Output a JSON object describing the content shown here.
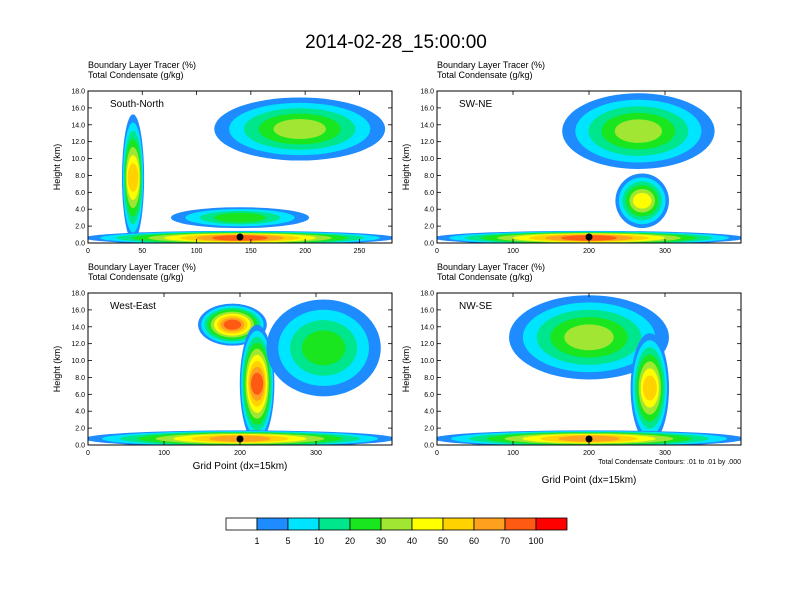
{
  "title": "2014-02-28_15:00:00",
  "header_line1": "Boundary Layer Tracer    (%)",
  "header_line2": "Total Condensate   (g/kg)",
  "y_axis_label": "Height (km)",
  "x_axis_label": "Grid Point (dx=15km)",
  "contour_note": "Total Condensate Contours: .01 to .01 by .000",
  "colorbar": {
    "colors": [
      "#ffffff",
      "#1e8cff",
      "#00e5ff",
      "#00e68c",
      "#19e61e",
      "#a0e632",
      "#ffff00",
      "#ffd200",
      "#ffa01e",
      "#ff5a14",
      "#ff0000"
    ],
    "labels": [
      "1",
      "5",
      "10",
      "20",
      "30",
      "40",
      "50",
      "60",
      "70",
      "100"
    ]
  },
  "chart_data": [
    {
      "type": "heatmap",
      "panel_label": "South-North",
      "x_ticks": [
        0,
        50,
        100,
        150,
        200,
        250
      ],
      "xlim": [
        0,
        280
      ],
      "y_ticks": [
        "0.0",
        "2.0",
        "4.0",
        "6.0",
        "8.0",
        "10.0",
        "12.0",
        "14.0",
        "16.0",
        "18.0"
      ],
      "ylim": [
        0,
        18
      ],
      "marker_x": 140,
      "blobs": [
        {
          "x": [
            35,
            48
          ],
          "y": [
            0.5,
            15.0
          ],
          "level": 7
        },
        {
          "x": [
            140,
            230
          ],
          "y": [
            11.0,
            16.5
          ],
          "level": 9
        },
        {
          "x": [
            120,
            270
          ],
          "y": [
            10.0,
            17.0
          ],
          "level": 5
        },
        {
          "x": [
            0,
            280
          ],
          "y": [
            0,
            1.2
          ],
          "level": 9
        },
        {
          "x": [
            80,
            200
          ],
          "y": [
            2.0,
            4.0
          ],
          "level": 4
        }
      ]
    },
    {
      "type": "heatmap",
      "panel_label": "SW-NE",
      "x_ticks": [
        0,
        100,
        200,
        300
      ],
      "xlim": [
        0,
        400
      ],
      "y_ticks": [
        "0.0",
        "2.0",
        "4.0",
        "6.0",
        "8.0",
        "10.0",
        "12.0",
        "14.0",
        "16.0",
        "18.0"
      ],
      "ylim": [
        0,
        18
      ],
      "marker_x": 200,
      "blobs": [
        {
          "x": [
            190,
            270
          ],
          "y": [
            10.0,
            17.0
          ],
          "level": 9
        },
        {
          "x": [
            170,
            360
          ],
          "y": [
            9.0,
            17.5
          ],
          "level": 5
        },
        {
          "x": [
            0,
            400
          ],
          "y": [
            0,
            1.2
          ],
          "level": 9
        },
        {
          "x": [
            240,
            300
          ],
          "y": [
            2.0,
            8.0
          ],
          "level": 6
        }
      ]
    },
    {
      "type": "heatmap",
      "panel_label": "West-East",
      "x_ticks": [
        0,
        100,
        200,
        300
      ],
      "xlim": [
        0,
        400
      ],
      "y_ticks": [
        "0.0",
        "2.0",
        "4.0",
        "6.0",
        "8.0",
        "10.0",
        "12.0",
        "14.0",
        "16.0",
        "18.0"
      ],
      "ylim": [
        0,
        18
      ],
      "marker_x": 200,
      "blobs": [
        {
          "x": [
            150,
            230
          ],
          "y": [
            12.0,
            16.5
          ],
          "level": 9
        },
        {
          "x": [
            205,
            240
          ],
          "y": [
            0.5,
            14.0
          ],
          "level": 9
        },
        {
          "x": [
            240,
            380
          ],
          "y": [
            6.0,
            17.0
          ],
          "level": 4
        },
        {
          "x": [
            0,
            400
          ],
          "y": [
            0,
            1.5
          ],
          "level": 8
        }
      ]
    },
    {
      "type": "heatmap",
      "panel_label": "NW-SE",
      "x_ticks": [
        0,
        100,
        200,
        300
      ],
      "xlim": [
        0,
        400
      ],
      "y_ticks": [
        "0.0",
        "2.0",
        "4.0",
        "6.0",
        "8.0",
        "10.0",
        "12.0",
        "14.0",
        "16.0",
        "18.0"
      ],
      "ylim": [
        0,
        18
      ],
      "marker_x": 200,
      "blobs": [
        {
          "x": [
            120,
            240
          ],
          "y": [
            12.0,
            17.0
          ],
          "level": 9
        },
        {
          "x": [
            100,
            300
          ],
          "y": [
            8.0,
            17.5
          ],
          "level": 5
        },
        {
          "x": [
            260,
            300
          ],
          "y": [
            0.5,
            13.0
          ],
          "level": 7
        },
        {
          "x": [
            0,
            400
          ],
          "y": [
            0,
            1.5
          ],
          "level": 8
        }
      ]
    }
  ]
}
